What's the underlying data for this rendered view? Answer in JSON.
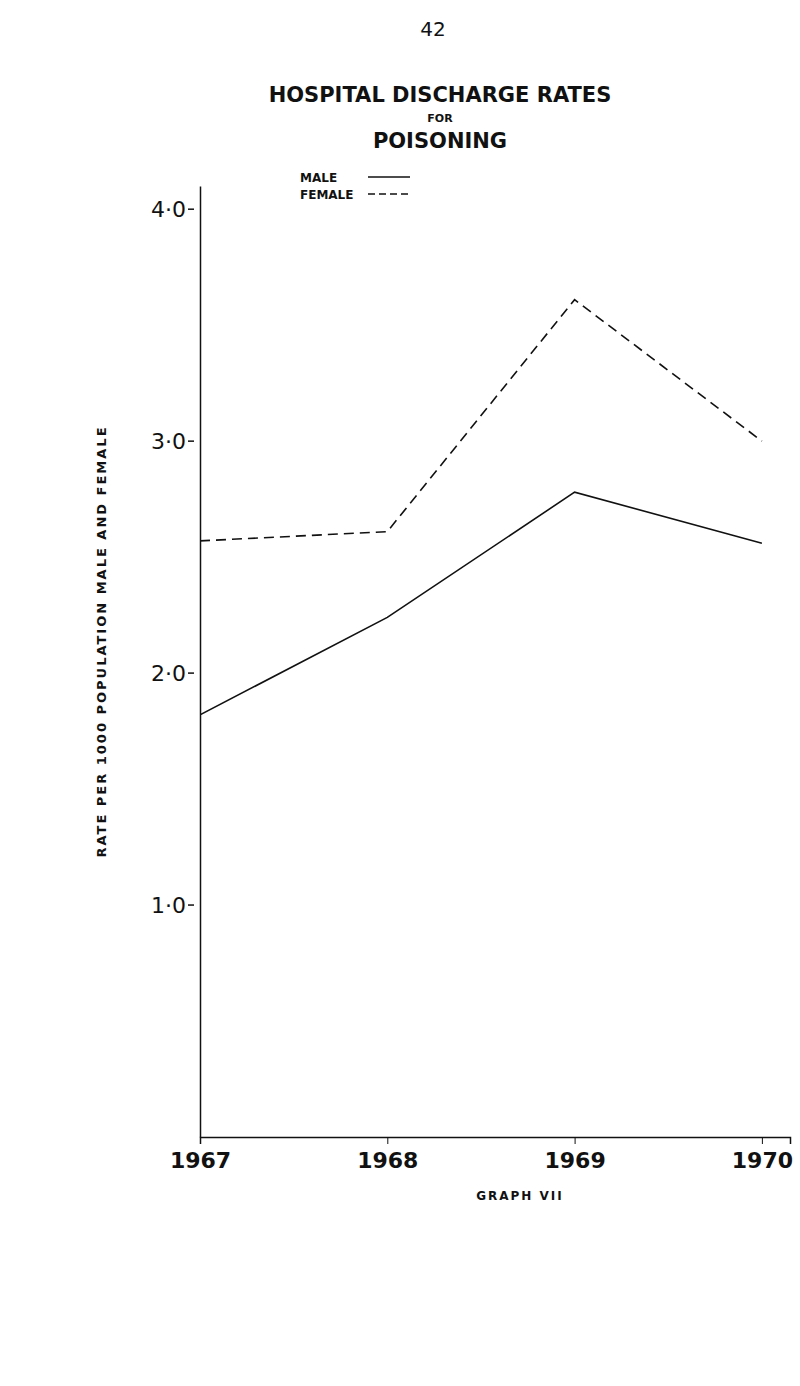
{
  "chart_data": {
    "type": "line",
    "page_number": "42",
    "title": [
      "HOSPITAL DISCHARGE RATES",
      "FOR",
      "POISONING"
    ],
    "y_label": "RATE PER 1000 POPULATION MALE AND FEMALE",
    "caption": "GRAPH VII",
    "x": [
      1967,
      1968,
      1969,
      1970
    ],
    "xlim": [
      1967,
      1970.15
    ],
    "xticks": [
      1967,
      1968,
      1969,
      1970
    ],
    "ylim": [
      0,
      4.1
    ],
    "yticks": [
      {
        "value": 1,
        "label": "1·0"
      },
      {
        "value": 2,
        "label": "2·0"
      },
      {
        "value": 3,
        "label": "3·0"
      },
      {
        "value": 4,
        "label": "4·0"
      }
    ],
    "grid": false,
    "legend": "top",
    "series": [
      {
        "name": "MALE",
        "color": "#111111",
        "line_style": "solid",
        "values": [
          1.82,
          2.24,
          2.78,
          2.56
        ]
      },
      {
        "name": "FEMALE",
        "color": "#111111",
        "line_style": "dashed",
        "values": [
          2.57,
          2.61,
          3.61,
          3.0
        ]
      }
    ]
  }
}
